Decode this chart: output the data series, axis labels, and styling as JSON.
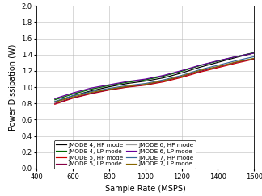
{
  "title": "",
  "xlabel": "Sample Rate (MSPS)",
  "ylabel": "Power Dissipation (W)",
  "xlim": [
    400,
    1600
  ],
  "ylim": [
    0,
    2
  ],
  "xticks": [
    400,
    600,
    800,
    1000,
    1200,
    1400,
    1600
  ],
  "yticks": [
    0,
    0.2,
    0.4,
    0.6,
    0.8,
    1.0,
    1.2,
    1.4,
    1.6,
    1.8,
    2.0
  ],
  "x": [
    500,
    600,
    700,
    800,
    900,
    1000,
    1100,
    1200,
    1300,
    1400,
    1500,
    1600
  ],
  "series": [
    {
      "label": "JMODE 4, HP mode",
      "color": "#000000",
      "y": [
        0.82,
        0.895,
        0.955,
        1.005,
        1.045,
        1.075,
        1.115,
        1.175,
        1.245,
        1.305,
        1.365,
        1.42
      ]
    },
    {
      "label": "JMODE 5, HP mode",
      "color": "#cc0000",
      "y": [
        0.79,
        0.865,
        0.92,
        0.965,
        1.0,
        1.025,
        1.065,
        1.12,
        1.185,
        1.24,
        1.295,
        1.345
      ]
    },
    {
      "label": "JMODE 6, HP mode",
      "color": "#999999",
      "y": [
        0.855,
        0.925,
        0.98,
        1.025,
        1.065,
        1.095,
        1.14,
        1.2,
        1.265,
        1.325,
        1.375,
        1.425
      ]
    },
    {
      "label": "JMODE 7, HP mode",
      "color": "#336699",
      "y": [
        0.825,
        0.895,
        0.945,
        0.985,
        1.02,
        1.045,
        1.09,
        1.145,
        1.215,
        1.27,
        1.325,
        1.375
      ]
    },
    {
      "label": "JMODE 4, LP mode",
      "color": "#006600",
      "y": [
        0.845,
        0.915,
        0.975,
        1.02,
        1.06,
        1.09,
        1.135,
        1.195,
        1.265,
        1.32,
        1.375,
        1.425
      ]
    },
    {
      "label": "JMODE 5, LP mode",
      "color": "#880044",
      "y": [
        0.8,
        0.87,
        0.925,
        0.97,
        1.005,
        1.03,
        1.075,
        1.13,
        1.195,
        1.25,
        1.305,
        1.35
      ]
    },
    {
      "label": "JMODE 6, LP mode",
      "color": "#660099",
      "y": [
        0.86,
        0.93,
        0.99,
        1.03,
        1.07,
        1.1,
        1.145,
        1.205,
        1.27,
        1.325,
        1.375,
        1.42
      ]
    },
    {
      "label": "JMODE 7, LP mode",
      "color": "#886600",
      "y": [
        0.815,
        0.88,
        0.935,
        0.975,
        1.01,
        1.035,
        1.08,
        1.135,
        1.205,
        1.255,
        1.31,
        1.355
      ]
    }
  ],
  "background_color": "#ffffff",
  "legend_fontsize": 5.2,
  "axis_fontsize": 7,
  "tick_fontsize": 6
}
